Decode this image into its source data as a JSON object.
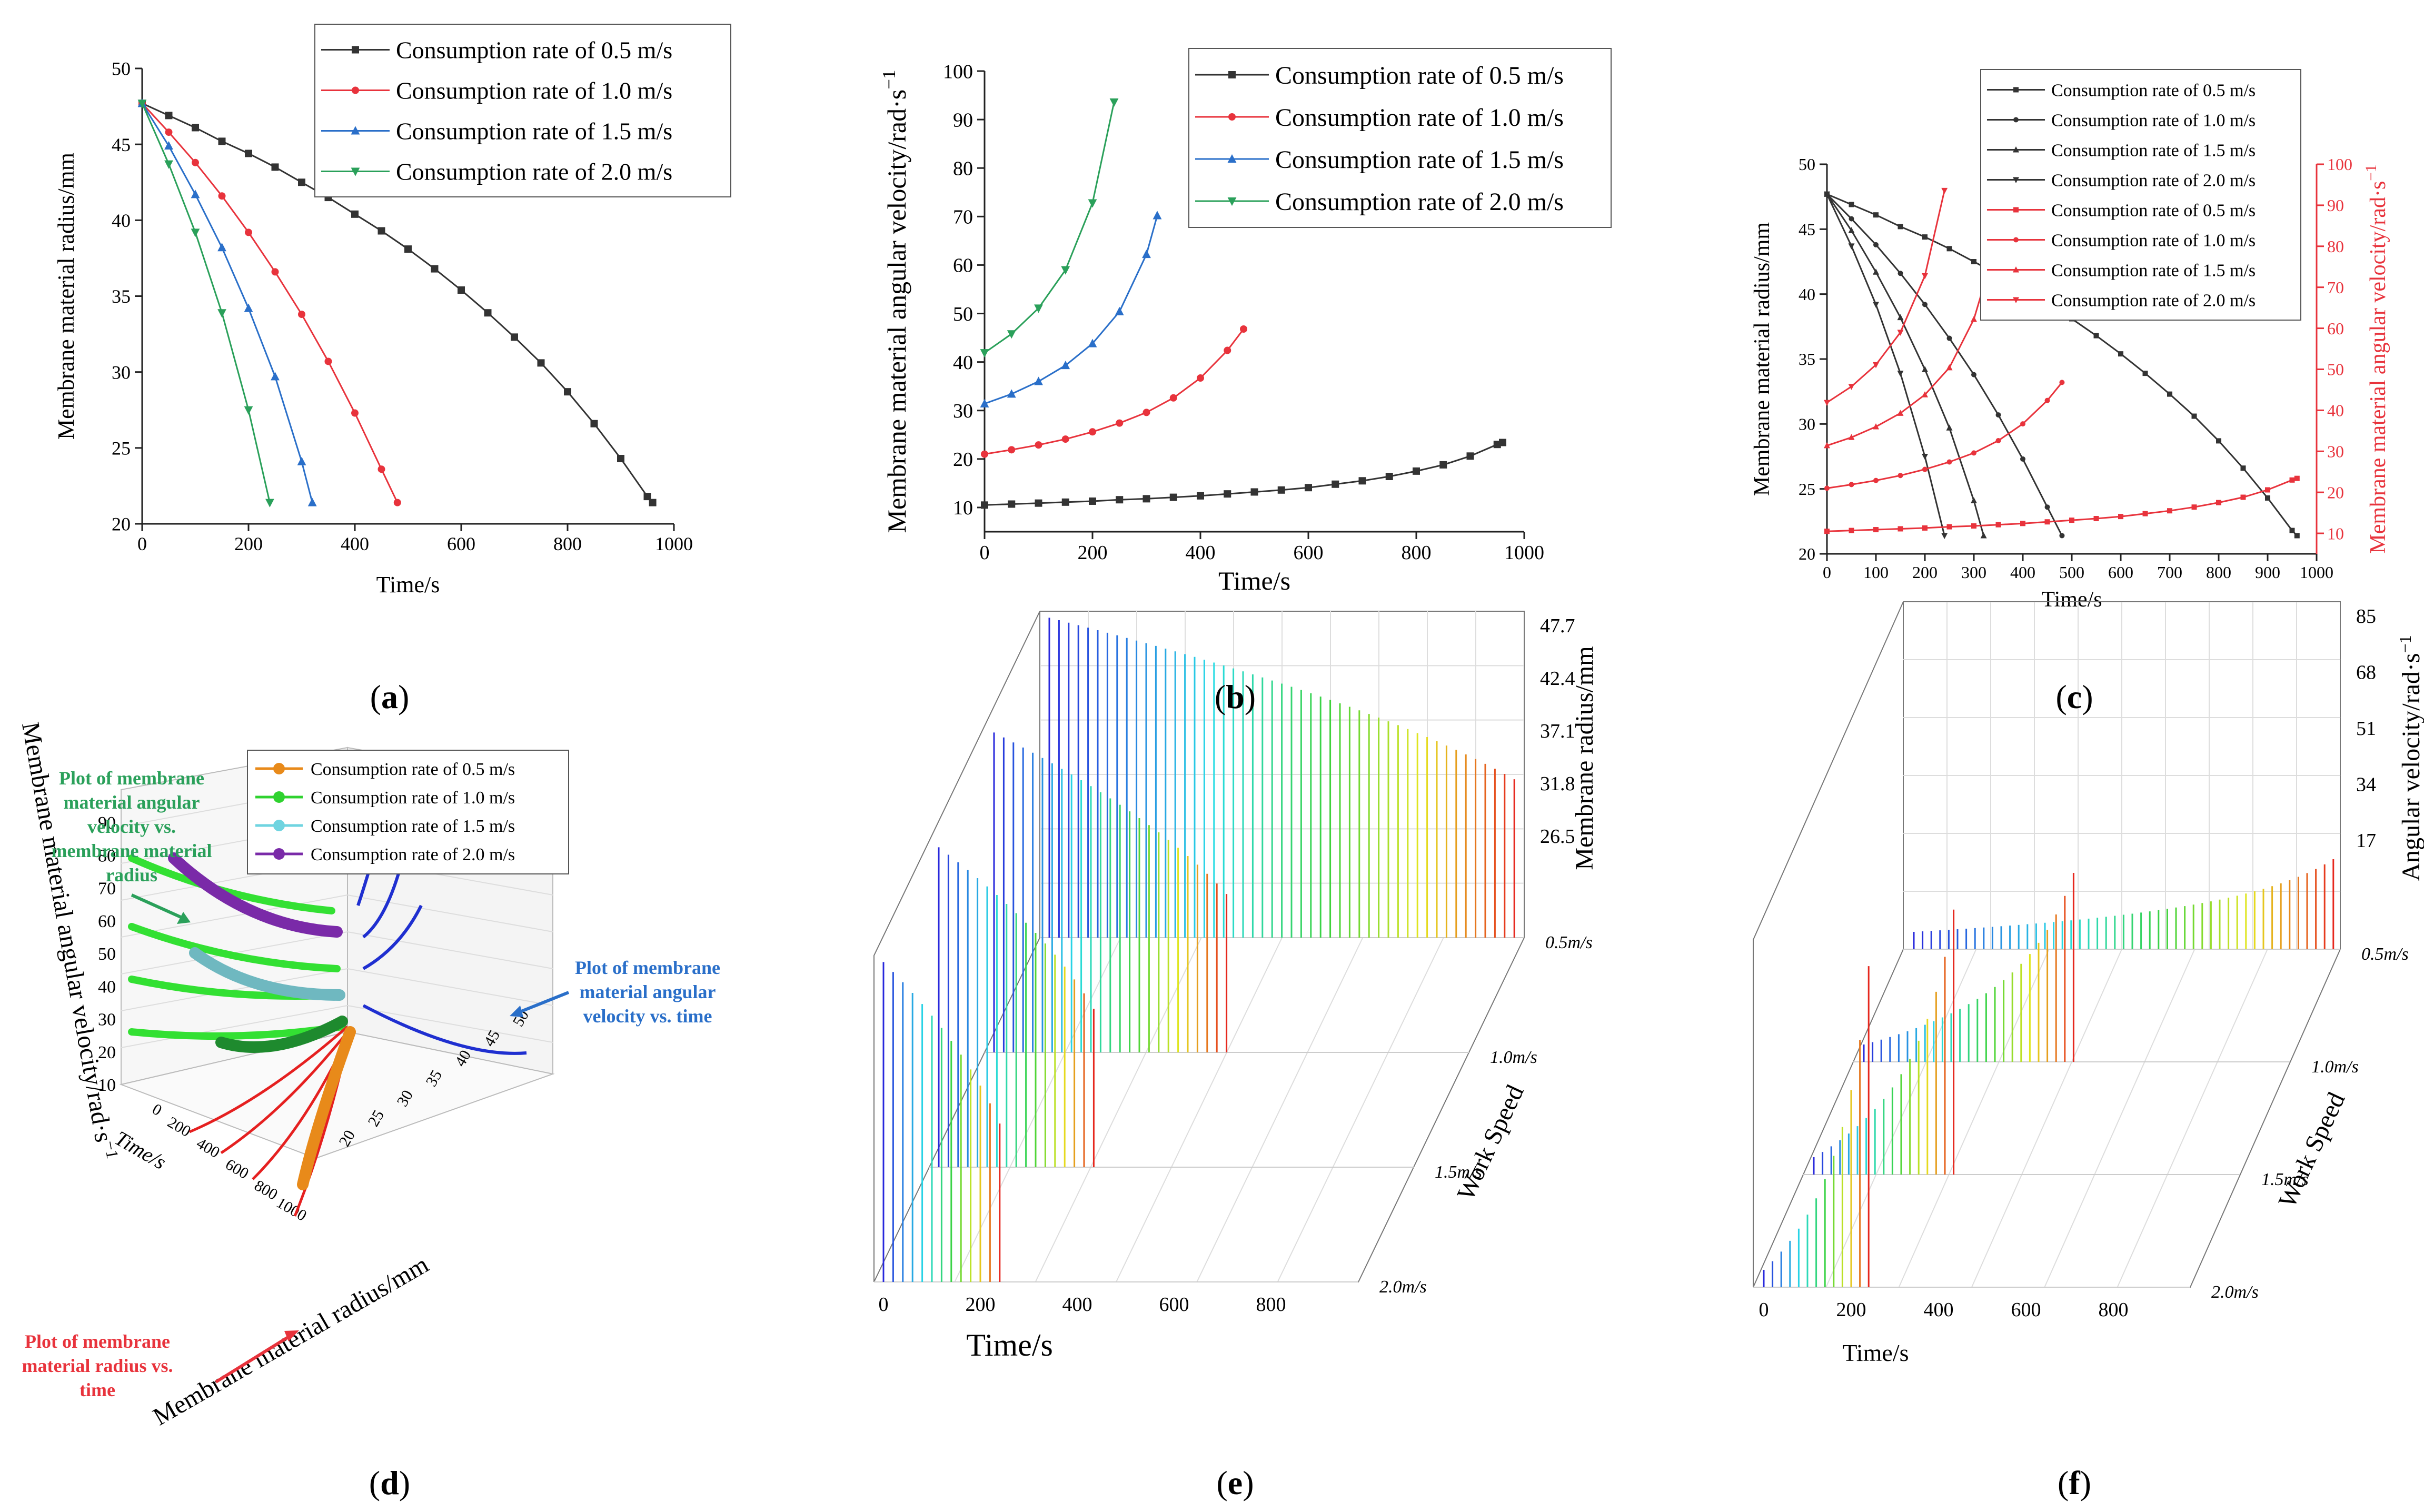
{
  "colors": {
    "black": "#333333",
    "red": "#e8333c",
    "blue": "#2a6fc9",
    "green": "#2aa05a",
    "axis_red": "#e8333c"
  },
  "panels": {
    "a": {
      "label": "a",
      "paren_open": "(",
      "paren_close": ")"
    },
    "b": {
      "label": "b",
      "paren_open": "(",
      "paren_close": ")"
    },
    "c": {
      "label": "c",
      "paren_open": "(",
      "paren_close": ")"
    },
    "d": {
      "label": "d",
      "paren_open": "(",
      "paren_close": ")"
    },
    "e": {
      "label": "e",
      "paren_open": "(",
      "paren_close": ")"
    },
    "f": {
      "label": "f",
      "paren_open": "(",
      "paren_close": ")"
    }
  },
  "chart_data": [
    {
      "id": "a",
      "type": "line",
      "xlabel": "Time/s",
      "ylabel": "Membrane material radius/mm",
      "xlim": [
        0,
        1000
      ],
      "ylim": [
        20,
        50
      ],
      "xticks": [
        0,
        200,
        400,
        600,
        800,
        1000
      ],
      "yticks": [
        20,
        25,
        30,
        35,
        40,
        45,
        50
      ],
      "legend_position": "top-right",
      "series": [
        {
          "name": "Consumption rate of 0.5 m/s",
          "color": "#333333",
          "marker": "square",
          "x": [
            0,
            50,
            100,
            150,
            200,
            250,
            300,
            350,
            400,
            450,
            500,
            550,
            600,
            650,
            700,
            750,
            800,
            850,
            900,
            950,
            960
          ],
          "y": [
            47.7,
            46.9,
            46.1,
            45.2,
            44.4,
            43.5,
            42.5,
            41.5,
            40.4,
            39.3,
            38.1,
            36.8,
            35.4,
            33.9,
            32.3,
            30.6,
            28.7,
            26.6,
            24.3,
            21.8,
            21.4
          ]
        },
        {
          "name": "Consumption rate of 1.0 m/s",
          "color": "#e8333c",
          "marker": "circle",
          "x": [
            0,
            50,
            100,
            150,
            200,
            250,
            300,
            350,
            400,
            450,
            480
          ],
          "y": [
            47.7,
            45.8,
            43.8,
            41.6,
            39.2,
            36.6,
            33.8,
            30.7,
            27.3,
            23.6,
            21.4
          ]
        },
        {
          "name": "Consumption rate of 1.5 m/s",
          "color": "#2a6fc9",
          "marker": "triangle-up",
          "x": [
            0,
            50,
            100,
            150,
            200,
            250,
            300,
            320
          ],
          "y": [
            47.7,
            44.9,
            41.7,
            38.2,
            34.2,
            29.7,
            24.1,
            21.4
          ]
        },
        {
          "name": "Consumption rate of 2.0 m/s",
          "color": "#2aa05a",
          "marker": "triangle-down",
          "x": [
            0,
            50,
            100,
            150,
            200,
            240
          ],
          "y": [
            47.7,
            43.7,
            39.2,
            33.9,
            27.5,
            21.4
          ]
        }
      ]
    },
    {
      "id": "b",
      "type": "line",
      "xlabel": "Time/s",
      "ylabel": "Membrane material angular velocity/rad·s",
      "ylabel_sup": "−1",
      "xlim": [
        0,
        1000
      ],
      "ylim": [
        5,
        100
      ],
      "xticks": [
        0,
        200,
        400,
        600,
        800,
        1000
      ],
      "yticks": [
        10,
        20,
        30,
        40,
        50,
        60,
        70,
        80,
        90,
        100
      ],
      "legend_position": "top-right",
      "series": [
        {
          "name": "Consumption rate of 0.5 m/s",
          "color": "#333333",
          "marker": "square",
          "x": [
            0,
            50,
            100,
            150,
            200,
            250,
            300,
            350,
            400,
            450,
            500,
            550,
            600,
            650,
            700,
            750,
            800,
            850,
            900,
            950,
            960
          ],
          "y": [
            10.5,
            10.7,
            10.9,
            11.1,
            11.3,
            11.6,
            11.8,
            12.1,
            12.4,
            12.8,
            13.2,
            13.6,
            14.1,
            14.8,
            15.5,
            16.4,
            17.5,
            18.8,
            20.6,
            23.0,
            23.4
          ]
        },
        {
          "name": "Consumption rate of 1.0 m/s",
          "color": "#e8333c",
          "marker": "circle",
          "x": [
            0,
            50,
            100,
            150,
            200,
            250,
            300,
            350,
            400,
            450,
            480
          ],
          "y": [
            21.0,
            21.9,
            22.9,
            24.1,
            25.6,
            27.4,
            29.6,
            32.6,
            36.7,
            42.4,
            46.8
          ]
        },
        {
          "name": "Consumption rate of 1.5 m/s",
          "color": "#2a6fc9",
          "marker": "triangle-up",
          "x": [
            0,
            50,
            100,
            150,
            200,
            250,
            300,
            320
          ],
          "y": [
            31.4,
            33.4,
            36.0,
            39.3,
            43.8,
            50.4,
            62.2,
            70.2
          ]
        },
        {
          "name": "Consumption rate of 2.0 m/s",
          "color": "#2aa05a",
          "marker": "triangle-down",
          "x": [
            0,
            50,
            100,
            150,
            200,
            240
          ],
          "y": [
            41.9,
            45.8,
            51.1,
            59.0,
            72.8,
            93.6
          ]
        }
      ]
    },
    {
      "id": "c",
      "type": "line",
      "xlabel": "Time/s",
      "ylabel": "Membrane material radius/mm",
      "y2label": "Membrane material angular velocity/rad·s",
      "y2label_sup": "−1",
      "xlim": [
        0,
        1000
      ],
      "ylim": [
        20,
        50
      ],
      "y2lim": [
        5,
        100
      ],
      "xticks": [
        0,
        100,
        200,
        300,
        400,
        500,
        600,
        700,
        800,
        900,
        1000
      ],
      "yticks": [
        20,
        25,
        30,
        35,
        40,
        45,
        50
      ],
      "y2ticks": [
        10,
        20,
        30,
        40,
        50,
        60,
        70,
        80,
        90,
        100
      ],
      "legend_position": "top-right",
      "series": [
        {
          "name": "Consumption rate of 0.5 m/s",
          "axis": "left",
          "color": "#333333",
          "marker": "square",
          "x": [
            0,
            50,
            100,
            150,
            200,
            250,
            300,
            350,
            400,
            450,
            500,
            550,
            600,
            650,
            700,
            750,
            800,
            850,
            900,
            950,
            960
          ],
          "y": [
            47.7,
            46.9,
            46.1,
            45.2,
            44.4,
            43.5,
            42.5,
            41.5,
            40.4,
            39.3,
            38.1,
            36.8,
            35.4,
            33.9,
            32.3,
            30.6,
            28.7,
            26.6,
            24.3,
            21.8,
            21.4
          ]
        },
        {
          "name": "Consumption rate of 1.0 m/s",
          "axis": "left",
          "color": "#333333",
          "marker": "circle",
          "x": [
            0,
            50,
            100,
            150,
            200,
            250,
            300,
            350,
            400,
            450,
            480
          ],
          "y": [
            47.7,
            45.8,
            43.8,
            41.6,
            39.2,
            36.6,
            33.8,
            30.7,
            27.3,
            23.6,
            21.4
          ]
        },
        {
          "name": "Consumption rate of 1.5 m/s",
          "axis": "left",
          "color": "#333333",
          "marker": "triangle-up",
          "x": [
            0,
            50,
            100,
            150,
            200,
            250,
            300,
            320
          ],
          "y": [
            47.7,
            44.9,
            41.7,
            38.2,
            34.2,
            29.7,
            24.1,
            21.4
          ]
        },
        {
          "name": "Consumption rate of 2.0 m/s",
          "axis": "left",
          "color": "#333333",
          "marker": "triangle-down",
          "x": [
            0,
            50,
            100,
            150,
            200,
            240
          ],
          "y": [
            47.7,
            43.7,
            39.2,
            33.9,
            27.5,
            21.4
          ]
        },
        {
          "name": "Consumption rate of 0.5 m/s",
          "axis": "right",
          "color": "#e8333c",
          "marker": "square",
          "x": [
            0,
            50,
            100,
            150,
            200,
            250,
            300,
            350,
            400,
            450,
            500,
            550,
            600,
            650,
            700,
            750,
            800,
            850,
            900,
            950,
            960
          ],
          "y": [
            10.5,
            10.7,
            10.9,
            11.1,
            11.3,
            11.6,
            11.8,
            12.1,
            12.4,
            12.8,
            13.2,
            13.6,
            14.1,
            14.8,
            15.5,
            16.4,
            17.5,
            18.8,
            20.6,
            23.0,
            23.4
          ]
        },
        {
          "name": "Consumption rate of 1.0 m/s",
          "axis": "right",
          "color": "#e8333c",
          "marker": "circle",
          "x": [
            0,
            50,
            100,
            150,
            200,
            250,
            300,
            350,
            400,
            450,
            480
          ],
          "y": [
            21.0,
            21.9,
            22.9,
            24.1,
            25.6,
            27.4,
            29.6,
            32.6,
            36.7,
            42.4,
            46.8
          ]
        },
        {
          "name": "Consumption rate of 1.5 m/s",
          "axis": "right",
          "color": "#e8333c",
          "marker": "triangle-up",
          "x": [
            0,
            50,
            100,
            150,
            200,
            250,
            300,
            320
          ],
          "y": [
            31.4,
            33.4,
            36.0,
            39.3,
            43.8,
            50.4,
            62.2,
            70.2
          ]
        },
        {
          "name": "Consumption rate of 2.0 m/s",
          "axis": "right",
          "color": "#e8333c",
          "marker": "triangle-down",
          "x": [
            0,
            50,
            100,
            150,
            200,
            240
          ],
          "y": [
            41.9,
            45.8,
            51.1,
            59.0,
            72.8,
            93.6
          ]
        }
      ]
    },
    {
      "id": "d",
      "type": "line",
      "xlabel": "Membrane material radius/mm",
      "ylabel": "Membrane material angular velocity/rad·s",
      "ylabel_sup": "−1",
      "zlabel": "Time/s",
      "yticks": [
        10,
        20,
        30,
        40,
        50,
        60,
        70,
        80,
        90
      ],
      "xticks": [
        20,
        25,
        30,
        35,
        40,
        45,
        50
      ],
      "zticks": [
        0,
        200,
        400,
        600,
        800,
        1000
      ],
      "legend_position": "top-right",
      "legend": [
        {
          "name": "Consumption rate of 0.5 m/s",
          "color": "#e88a1a"
        },
        {
          "name": "Consumption rate of 1.0 m/s",
          "color": "#2fd22f"
        },
        {
          "name": "Consumption rate of 1.5 m/s",
          "color": "#6fd4e0"
        },
        {
          "name": "Consumption rate of 2.0 m/s",
          "color": "#7a2aa8"
        }
      ],
      "annotations": [
        {
          "text": [
            "Plot of membrane",
            "material angular",
            "velocity vs.",
            "membrane material",
            "radius"
          ],
          "color": "#2aa05a"
        },
        {
          "text": [
            "Plot of membrane",
            "material angular",
            "velocity vs. time"
          ],
          "color": "#2a6fc9"
        },
        {
          "text": [
            "Plot of membrane",
            "material radius vs.",
            "time"
          ],
          "color": "#e8333c"
        }
      ]
    },
    {
      "id": "e",
      "type": "area",
      "xlabel": "Time/s",
      "ylabel": "Membrane radius/mm",
      "zlabel": "Work Speed",
      "xticks": [
        0,
        200,
        400,
        600,
        800
      ],
      "zticks": [
        "47.7",
        "42.4",
        "37.1",
        "31.8",
        "26.5"
      ],
      "yticks": [
        "0.5m/s",
        "1.0m/s",
        "1.5m/s",
        "2.0m/s"
      ],
      "series": [
        {
          "name": "0.5m/s",
          "duration": 960
        },
        {
          "name": "1.0m/s",
          "duration": 480
        },
        {
          "name": "1.5m/s",
          "duration": 320
        },
        {
          "name": "2.0m/s",
          "duration": 240
        }
      ]
    },
    {
      "id": "f",
      "type": "area",
      "xlabel": "Time/s",
      "ylabel": "Angular velocity/rad·s",
      "ylabel_sup": "−1",
      "zlabel": "Work Speed",
      "xticks": [
        0,
        200,
        400,
        600,
        800
      ],
      "zticks": [
        "85",
        "68",
        "51",
        "34",
        "17"
      ],
      "yticks": [
        "0.5m/s",
        "1.0m/s",
        "1.5m/s",
        "2.0m/s"
      ],
      "series": [
        {
          "name": "0.5m/s",
          "duration": 960
        },
        {
          "name": "1.0m/s",
          "duration": 480
        },
        {
          "name": "1.5m/s",
          "duration": 320
        },
        {
          "name": "2.0m/s",
          "duration": 240
        }
      ]
    }
  ]
}
